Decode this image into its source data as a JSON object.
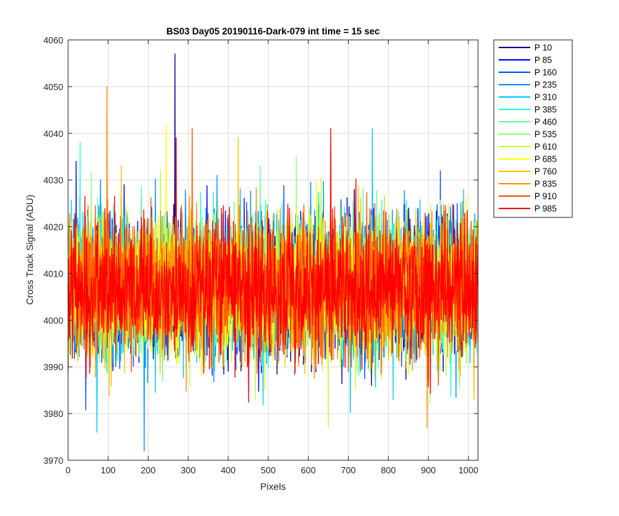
{
  "chart_data": {
    "type": "line",
    "title": "BS03 Day05 20190116-Dark-079 int time = 15 sec",
    "xlabel": "Pixels",
    "ylabel": "Cross Track Signal (ADU)",
    "xlim": [
      0,
      1024
    ],
    "ylim": [
      3970,
      4060
    ],
    "xticks": [
      0,
      100,
      200,
      300,
      400,
      500,
      600,
      700,
      800,
      900,
      1000
    ],
    "yticks": [
      3970,
      3980,
      3990,
      4000,
      4010,
      4020,
      4030,
      4040,
      4050,
      4060
    ],
    "grid": true,
    "legend_position": "outside-top-right",
    "noise_model": {
      "mean": 4007,
      "sd": 7,
      "n_points": 1024
    },
    "series": [
      {
        "name": "P 10",
        "color": "#00008f",
        "spikes": [
          [
            267,
            4057
          ],
          [
            140,
            4029
          ]
        ]
      },
      {
        "name": "P 85",
        "color": "#0000ff",
        "spikes": [
          [
            20,
            4034
          ]
        ]
      },
      {
        "name": "P 160",
        "color": "#0050ff",
        "spikes": [
          [
            930,
            4032
          ]
        ]
      },
      {
        "name": "P 235",
        "color": "#0090ff",
        "spikes": [
          [
            190,
            3972
          ]
        ]
      },
      {
        "name": "P 310",
        "color": "#00c8ff",
        "spikes": [
          [
            760,
            4041
          ],
          [
            72,
            3976
          ]
        ]
      },
      {
        "name": "P 385",
        "color": "#20ffe0",
        "spikes": [
          [
            30,
            4038
          ]
        ]
      },
      {
        "name": "P 460",
        "color": "#60ffa0",
        "spikes": [
          [
            480,
            4033
          ]
        ]
      },
      {
        "name": "P 535",
        "color": "#90ff70",
        "spikes": [
          [
            570,
            4035
          ]
        ]
      },
      {
        "name": "P 610",
        "color": "#c0ff40",
        "spikes": [
          [
            650,
            3977
          ]
        ]
      },
      {
        "name": "P 685",
        "color": "#ffff00",
        "spikes": [
          [
            245,
            4042
          ]
        ]
      },
      {
        "name": "P 760",
        "color": "#ffc000",
        "spikes": [
          [
            425,
            4039
          ]
        ]
      },
      {
        "name": "P 835",
        "color": "#ff9000",
        "spikes": [
          [
            97,
            4050
          ],
          [
            897,
            3977
          ]
        ]
      },
      {
        "name": "P 910",
        "color": "#ff5000",
        "spikes": [
          [
            310,
            4041
          ]
        ]
      },
      {
        "name": "P 985",
        "color": "#ff0000",
        "spikes": [
          [
            656,
            4041
          ],
          [
            270,
            4039
          ]
        ]
      }
    ]
  }
}
